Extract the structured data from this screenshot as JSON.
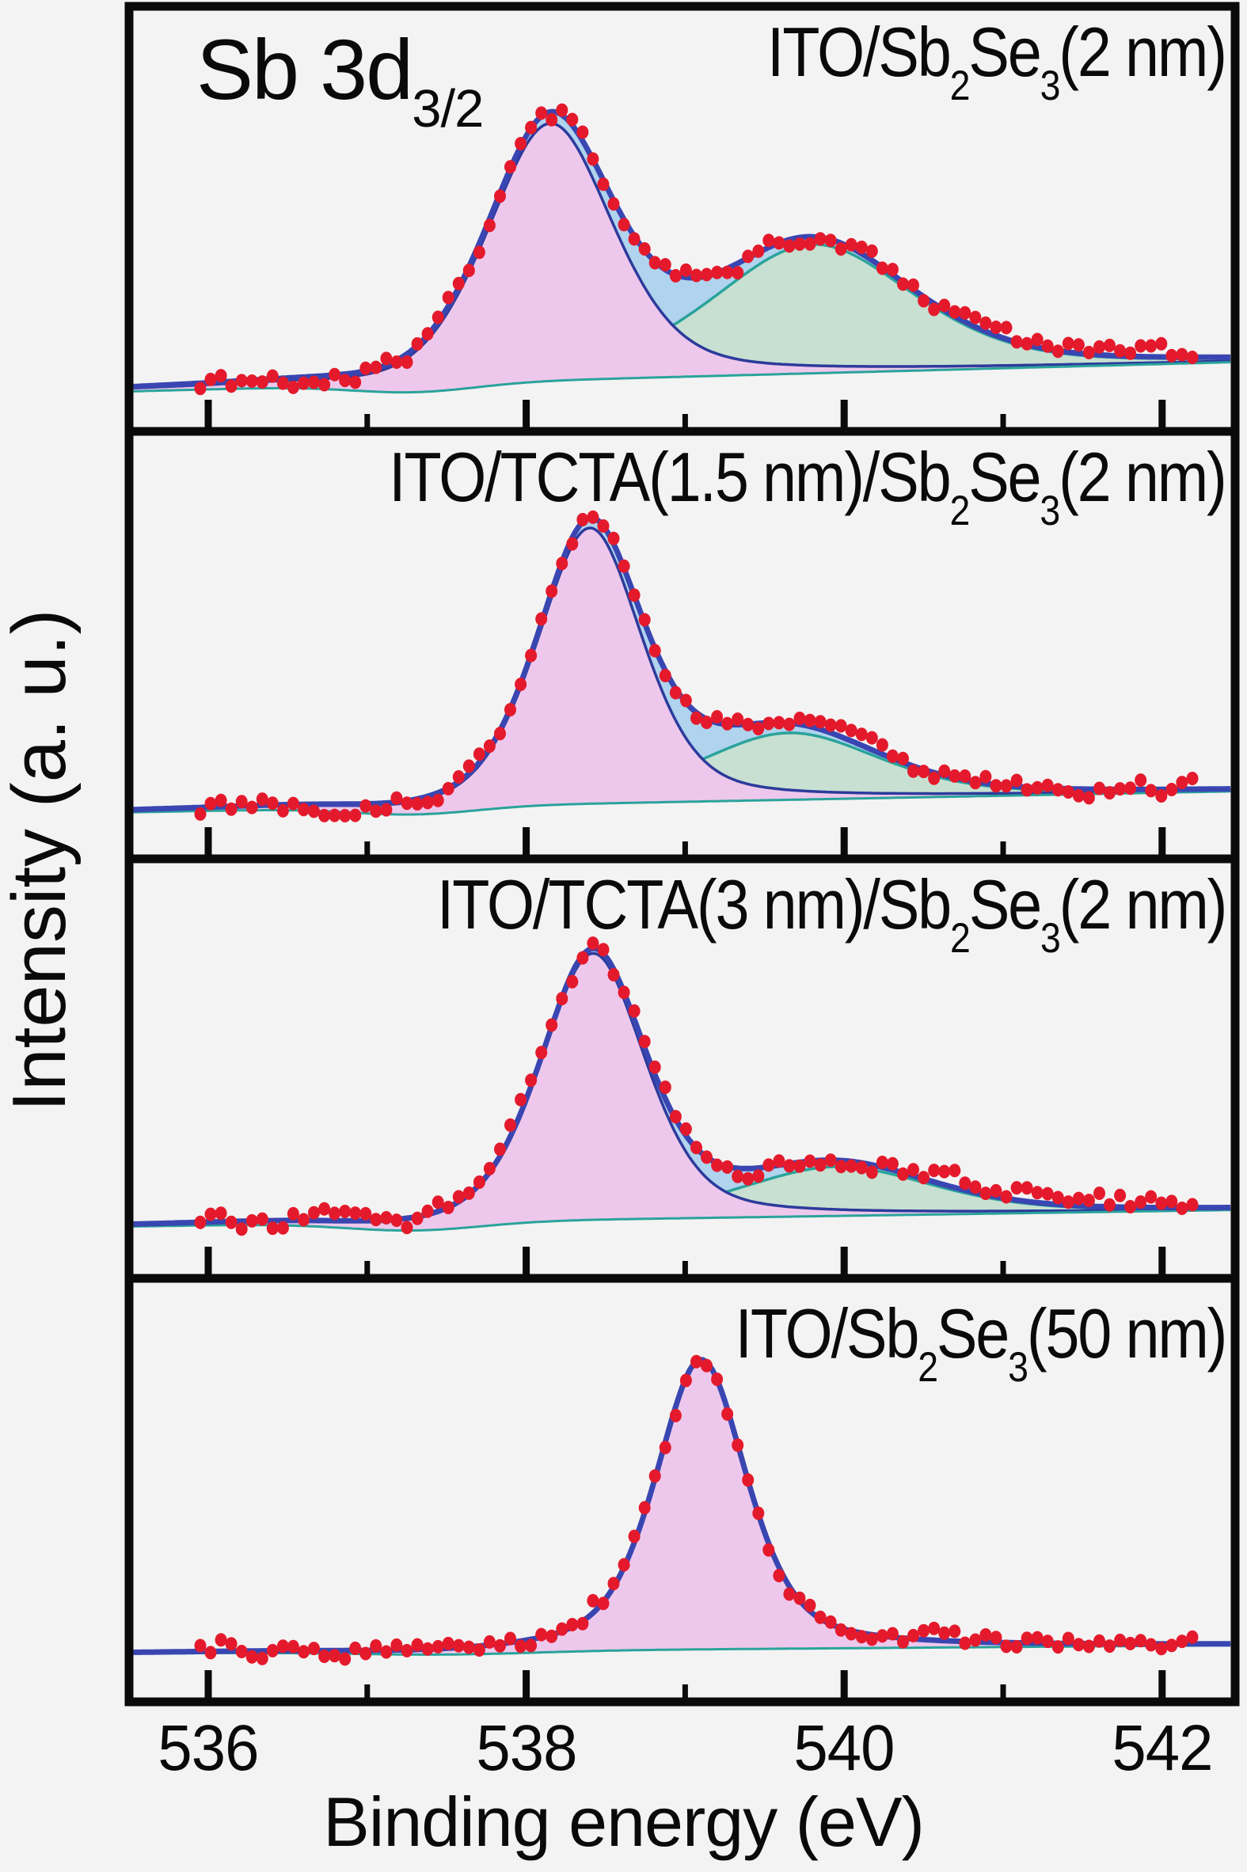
{
  "figure": {
    "corner_label": {
      "main": "Sb 3d",
      "sub": "3/2"
    },
    "xlabel": "Binding energy (eV)",
    "ylabel": "Intensity (a. u.)",
    "x_major_ticks": [
      536,
      538,
      540,
      542
    ],
    "x_minor_ticks": [
      537,
      539,
      541
    ],
    "x_axis_range_eV": [
      535.5,
      542.45
    ],
    "grid": "off",
    "legend": "none"
  },
  "colors": {
    "background": "#f4f3f3",
    "frame": "#0a0a0a",
    "text": "#0a0a0a",
    "data_points": "#e41a2c",
    "envelope_line": "#3946b2",
    "envelope_fill": "#b0d3ee",
    "peak1_fill": "#eec8ec",
    "peak1_edge": "#2c3b9b",
    "peak2_fill": "#c7e0d2",
    "peak2_edge": "#2aa39b",
    "background_line": "#2aa39b"
  },
  "chart_data": [
    {
      "type": "area",
      "panel": 1,
      "label_plain": "ITO/Sb2Se3(2 nm)",
      "label_segments": [
        [
          "ITO/Sb",
          false
        ],
        [
          "2",
          true
        ],
        [
          "Se",
          false
        ],
        [
          "3",
          true
        ],
        [
          "(2 nm)",
          false
        ]
      ],
      "x_unit": "eV",
      "y_unit": "a.u. (fraction of panel height)",
      "baseline": {
        "left_frac": 0.085,
        "right_frac": 0.155,
        "dip_center_eV": 537.3,
        "dip_depth_frac": 0.02,
        "dip_width_eV": 0.55
      },
      "peaks": [
        {
          "id": "Sb-Se",
          "center_eV": 538.15,
          "fwhm_eV": 0.94,
          "height_frac": 0.62,
          "lorentz_frac": 0.4,
          "fill": "peak1_fill",
          "edge": "peak1_edge"
        },
        {
          "id": "Sb-O",
          "center_eV": 539.8,
          "fwhm_eV": 1.5,
          "height_frac": 0.31,
          "lorentz_frac": 0.4,
          "fill": "peak2_fill",
          "edge": "peak2_edge"
        }
      ],
      "noise": {
        "seed": 11,
        "amp_frac": 0.016,
        "right_bias_frac": 0.01
      }
    },
    {
      "type": "area",
      "panel": 2,
      "label_plain": "ITO/TCTA(1.5 nm)/Sb2Se3(2 nm)",
      "label_segments": [
        [
          "ITO/TCTA(1.5 nm)/Sb",
          false
        ],
        [
          "2",
          true
        ],
        [
          "Se",
          false
        ],
        [
          "3",
          true
        ],
        [
          "(2 nm)",
          false
        ]
      ],
      "x_unit": "eV",
      "y_unit": "a.u. (fraction of panel height)",
      "baseline": {
        "left_frac": 0.1,
        "right_frac": 0.15,
        "dip_center_eV": 537.3,
        "dip_depth_frac": 0.018,
        "dip_width_eV": 0.55
      },
      "peaks": [
        {
          "id": "Sb-Se",
          "center_eV": 538.4,
          "fwhm_eV": 0.78,
          "height_frac": 0.66,
          "lorentz_frac": 0.4,
          "fill": "peak1_fill",
          "edge": "peak1_edge"
        },
        {
          "id": "Sb-O",
          "center_eV": 539.65,
          "fwhm_eV": 1.36,
          "height_frac": 0.16,
          "lorentz_frac": 0.4,
          "fill": "peak2_fill",
          "edge": "peak2_edge"
        }
      ],
      "noise": {
        "seed": 23,
        "amp_frac": 0.016,
        "right_bias_frac": 0.006
      }
    },
    {
      "type": "area",
      "panel": 3,
      "label_plain": "ITO/TCTA(3 nm)/Sb2Se3(2 nm)",
      "label_segments": [
        [
          "ITO/TCTA(3 nm)/Sb",
          false
        ],
        [
          "2",
          true
        ],
        [
          "Se",
          false
        ],
        [
          "3",
          true
        ],
        [
          "(2 nm)",
          false
        ]
      ],
      "x_unit": "eV",
      "y_unit": "a.u. (fraction of panel height)",
      "baseline": {
        "left_frac": 0.115,
        "right_frac": 0.155,
        "dip_center_eV": 537.3,
        "dip_depth_frac": 0.02,
        "dip_width_eV": 0.6
      },
      "peaks": [
        {
          "id": "Sb-Se",
          "center_eV": 538.42,
          "fwhm_eV": 0.78,
          "height_frac": 0.65,
          "lorentz_frac": 0.4,
          "fill": "peak1_fill",
          "edge": "peak1_edge"
        },
        {
          "id": "Sb-O",
          "center_eV": 539.95,
          "fwhm_eV": 1.44,
          "height_frac": 0.12,
          "lorentz_frac": 0.4,
          "fill": "peak2_fill",
          "edge": "peak2_edge"
        }
      ],
      "noise": {
        "seed": 37,
        "amp_frac": 0.018,
        "right_bias_frac": 0.016
      }
    },
    {
      "type": "area",
      "panel": 4,
      "label_plain": "ITO/Sb2Se3(50 nm)",
      "label_segments": [
        [
          "ITO/Sb",
          false
        ],
        [
          "2",
          true
        ],
        [
          "Se",
          false
        ],
        [
          "3",
          true
        ],
        [
          "(50 nm)",
          false
        ]
      ],
      "x_unit": "eV",
      "y_unit": "a.u. (fraction of panel height)",
      "baseline": {
        "left_frac": 0.105,
        "right_frac": 0.125,
        "dip_center_eV": 537.5,
        "dip_depth_frac": 0.008,
        "dip_width_eV": 0.8
      },
      "peaks": [
        {
          "id": "Sb-Se",
          "center_eV": 539.1,
          "fwhm_eV": 0.68,
          "height_frac": 0.7,
          "lorentz_frac": 0.5,
          "fill": "peak1_fill",
          "edge": "peak1_edge"
        }
      ],
      "noise": {
        "seed": 51,
        "amp_frac": 0.015,
        "right_bias_frac": 0.0
      }
    }
  ]
}
